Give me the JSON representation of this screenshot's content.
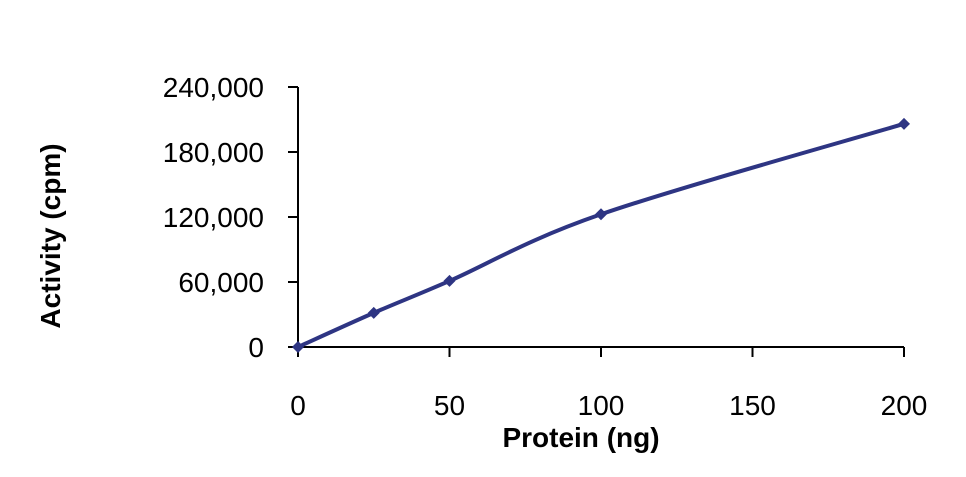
{
  "chart_data": {
    "type": "line",
    "xlabel": "Protein (ng)",
    "ylabel": "Activity (cpm)",
    "xlim": [
      0,
      200
    ],
    "ylim": [
      0,
      240000
    ],
    "x_ticks": [
      {
        "value": 0,
        "label": "0"
      },
      {
        "value": 50,
        "label": "50"
      },
      {
        "value": 100,
        "label": "100"
      },
      {
        "value": 150,
        "label": "150"
      },
      {
        "value": 200,
        "label": "200"
      }
    ],
    "y_ticks": [
      {
        "value": 0,
        "label": "0"
      },
      {
        "value": 60000,
        "label": "60,000"
      },
      {
        "value": 120000,
        "label": "120,000"
      },
      {
        "value": 180000,
        "label": "180,000"
      },
      {
        "value": 240000,
        "label": "240,000"
      }
    ],
    "grid": false,
    "legend": "none",
    "series": [
      {
        "color": "#2E3583",
        "marker": "diamond",
        "smooth": true,
        "points": [
          {
            "x": 0,
            "y": 0
          },
          {
            "x": 25,
            "y": 31500
          },
          {
            "x": 50,
            "y": 61000
          },
          {
            "x": 100,
            "y": 122500
          },
          {
            "x": 200,
            "y": 206000
          }
        ]
      }
    ]
  }
}
